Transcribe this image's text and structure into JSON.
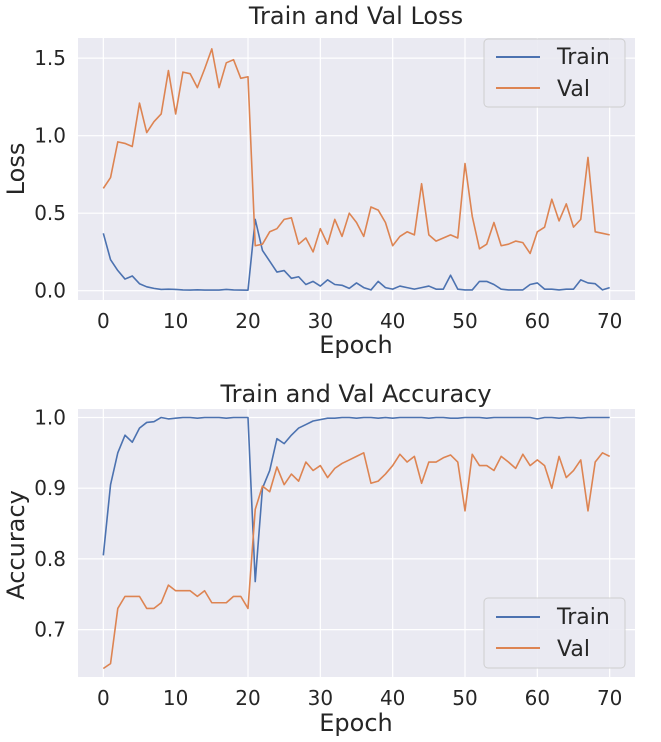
{
  "chart_data": [
    {
      "type": "line",
      "title": "Train and Val Loss",
      "xlabel": "Epoch",
      "ylabel": "Loss",
      "xlim": [
        -3.5,
        73.5
      ],
      "ylim": [
        -0.06,
        1.63
      ],
      "xticks": [
        0,
        10,
        20,
        30,
        40,
        50,
        60,
        70
      ],
      "xtick_labels": [
        "0",
        "10",
        "20",
        "30",
        "40",
        "50",
        "60",
        "70"
      ],
      "yticks": [
        0.0,
        0.5,
        1.0,
        1.5
      ],
      "ytick_labels": [
        "0.0",
        "0.5",
        "1.0",
        "1.5"
      ],
      "grid": true,
      "legend_position": "top-right",
      "series": [
        {
          "name": "Train",
          "color": "#4c72b0",
          "values": [
            0.37,
            0.2,
            0.13,
            0.075,
            0.095,
            0.045,
            0.025,
            0.015,
            0.008,
            0.01,
            0.008,
            0.005,
            0.004,
            0.006,
            0.004,
            0.004,
            0.004,
            0.008,
            0.005,
            0.004,
            0.003,
            0.46,
            0.26,
            0.19,
            0.12,
            0.13,
            0.08,
            0.09,
            0.04,
            0.06,
            0.03,
            0.07,
            0.04,
            0.035,
            0.015,
            0.05,
            0.02,
            0.005,
            0.06,
            0.02,
            0.01,
            0.03,
            0.02,
            0.01,
            0.02,
            0.03,
            0.01,
            0.01,
            0.1,
            0.01,
            0.005,
            0.005,
            0.06,
            0.06,
            0.04,
            0.01,
            0.005,
            0.005,
            0.005,
            0.04,
            0.05,
            0.01,
            0.01,
            0.005,
            0.01,
            0.01,
            0.07,
            0.05,
            0.045,
            0.005,
            0.02
          ]
        },
        {
          "name": "Val",
          "color": "#dd8452",
          "values": [
            0.66,
            0.73,
            0.96,
            0.95,
            0.93,
            1.21,
            1.02,
            1.09,
            1.14,
            1.42,
            1.14,
            1.41,
            1.4,
            1.31,
            1.43,
            1.56,
            1.31,
            1.47,
            1.49,
            1.37,
            1.38,
            0.29,
            0.3,
            0.38,
            0.4,
            0.46,
            0.47,
            0.3,
            0.34,
            0.25,
            0.4,
            0.3,
            0.46,
            0.35,
            0.5,
            0.44,
            0.35,
            0.54,
            0.52,
            0.44,
            0.29,
            0.35,
            0.38,
            0.36,
            0.69,
            0.36,
            0.32,
            0.34,
            0.36,
            0.34,
            0.82,
            0.48,
            0.27,
            0.3,
            0.44,
            0.29,
            0.3,
            0.32,
            0.31,
            0.24,
            0.38,
            0.41,
            0.59,
            0.45,
            0.56,
            0.41,
            0.46,
            0.86,
            0.38,
            0.37,
            0.36
          ]
        }
      ]
    },
    {
      "type": "line",
      "title": "Train and Val Accuracy",
      "xlabel": "Epoch",
      "ylabel": "Accuracy",
      "xlim": [
        -3.5,
        73.5
      ],
      "ylim": [
        0.633,
        1.012
      ],
      "xticks": [
        0,
        10,
        20,
        30,
        40,
        50,
        60,
        70
      ],
      "xtick_labels": [
        "0",
        "10",
        "20",
        "30",
        "40",
        "50",
        "60",
        "70"
      ],
      "yticks": [
        0.7,
        0.8,
        0.9,
        1.0
      ],
      "ytick_labels": [
        "0.7",
        "0.8",
        "0.9",
        "1.0"
      ],
      "grid": true,
      "legend_position": "bottom-right",
      "series": [
        {
          "name": "Train",
          "color": "#4c72b0",
          "values": [
            0.805,
            0.905,
            0.95,
            0.975,
            0.965,
            0.985,
            0.993,
            0.994,
            1.0,
            0.998,
            0.999,
            1.0,
            1.0,
            0.999,
            1.0,
            1.0,
            1.0,
            0.999,
            1.0,
            1.0,
            1.0,
            0.768,
            0.9,
            0.925,
            0.97,
            0.963,
            0.975,
            0.985,
            0.99,
            0.995,
            0.997,
            0.999,
            0.999,
            1.0,
            1.0,
            0.999,
            1.0,
            1.0,
            0.999,
            1.0,
            0.999,
            1.0,
            1.0,
            1.0,
            1.0,
            0.999,
            1.0,
            1.0,
            0.999,
            0.999,
            1.0,
            1.0,
            1.0,
            0.999,
            1.0,
            1.0,
            1.0,
            1.0,
            1.0,
            1.0,
            0.998,
            1.0,
            1.0,
            0.999,
            1.0,
            1.0,
            0.999,
            1.0,
            1.0,
            1.0,
            1.0
          ]
        },
        {
          "name": "Val",
          "color": "#dd8452",
          "values": [
            0.645,
            0.652,
            0.73,
            0.747,
            0.747,
            0.747,
            0.73,
            0.73,
            0.738,
            0.763,
            0.755,
            0.755,
            0.755,
            0.747,
            0.755,
            0.738,
            0.738,
            0.738,
            0.747,
            0.747,
            0.73,
            0.87,
            0.903,
            0.895,
            0.93,
            0.905,
            0.92,
            0.91,
            0.937,
            0.925,
            0.932,
            0.915,
            0.928,
            0.935,
            0.94,
            0.945,
            0.95,
            0.907,
            0.91,
            0.92,
            0.932,
            0.948,
            0.937,
            0.945,
            0.907,
            0.937,
            0.937,
            0.943,
            0.947,
            0.937,
            0.868,
            0.948,
            0.932,
            0.932,
            0.925,
            0.945,
            0.937,
            0.928,
            0.948,
            0.932,
            0.94,
            0.932,
            0.9,
            0.945,
            0.915,
            0.925,
            0.94,
            0.868,
            0.937,
            0.95,
            0.945
          ]
        }
      ]
    }
  ]
}
